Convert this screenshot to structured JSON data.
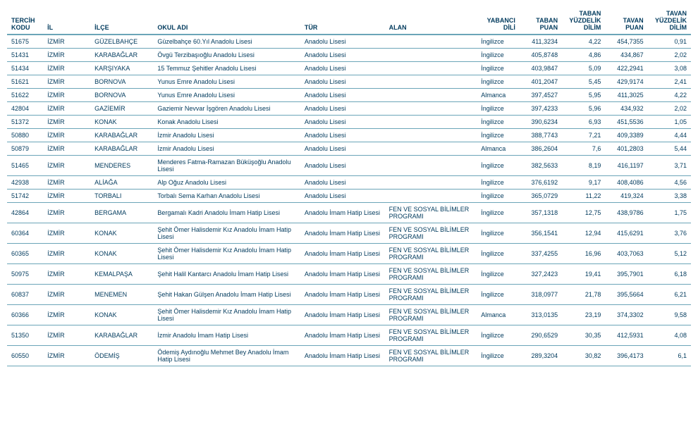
{
  "headers": {
    "tercih": "TERCİH KODU",
    "il": "İL",
    "ilce": "İLÇE",
    "okul": "OKUL ADI",
    "tur": "TÜR",
    "alan": "ALAN",
    "dil": "YABANCI DİLİ",
    "taban": "TABAN PUAN",
    "tabanyd": "TABAN YÜZDELİK DİLİM",
    "tavan": "TAVAN PUAN",
    "tavanyd": "TAVAN YÜZDELİK DİLİM"
  },
  "rows": [
    {
      "tercih": "51675",
      "il": "İZMİR",
      "ilce": "GÜZELBAHÇE",
      "okul": "Güzelbahçe 60.Yıl Anadolu Lisesi",
      "tur": "Anadolu Lisesi",
      "alan": "",
      "dil": "İngilizce",
      "taban": "411,3234",
      "tabanyd": "4,22",
      "tavan": "454,7355",
      "tavanyd": "0,91"
    },
    {
      "tercih": "51431",
      "il": "İZMİR",
      "ilce": "KARABAĞLAR",
      "okul": "Övgü Terzibaşıoğlu Anadolu Lisesi",
      "tur": "Anadolu Lisesi",
      "alan": "",
      "dil": "İngilizce",
      "taban": "405,8748",
      "tabanyd": "4,86",
      "tavan": "434,867",
      "tavanyd": "2,02"
    },
    {
      "tercih": "51434",
      "il": "İZMİR",
      "ilce": "KARŞIYAKA",
      "okul": "15 Temmuz Şehitler Anadolu Lisesi",
      "tur": "Anadolu Lisesi",
      "alan": "",
      "dil": "İngilizce",
      "taban": "403,9847",
      "tabanyd": "5,09",
      "tavan": "422,2941",
      "tavanyd": "3,08"
    },
    {
      "tercih": "51621",
      "il": "İZMİR",
      "ilce": "BORNOVA",
      "okul": "Yunus Emre Anadolu Lisesi",
      "tur": "Anadolu Lisesi",
      "alan": "",
      "dil": "İngilizce",
      "taban": "401,2047",
      "tabanyd": "5,45",
      "tavan": "429,9174",
      "tavanyd": "2,41"
    },
    {
      "tercih": "51622",
      "il": "İZMİR",
      "ilce": "BORNOVA",
      "okul": "Yunus Emre Anadolu Lisesi",
      "tur": "Anadolu Lisesi",
      "alan": "",
      "dil": "Almanca",
      "taban": "397,4527",
      "tabanyd": "5,95",
      "tavan": "411,3025",
      "tavanyd": "4,22"
    },
    {
      "tercih": "42804",
      "il": "İZMİR",
      "ilce": "GAZİEMİR",
      "okul": "Gaziemir Nevvar İşgören Anadolu Lisesi",
      "tur": "Anadolu Lisesi",
      "alan": "",
      "dil": "İngilizce",
      "taban": "397,4233",
      "tabanyd": "5,96",
      "tavan": "434,932",
      "tavanyd": "2,02"
    },
    {
      "tercih": "51372",
      "il": "İZMİR",
      "ilce": "KONAK",
      "okul": "Konak Anadolu Lisesi",
      "tur": "Anadolu Lisesi",
      "alan": "",
      "dil": "İngilizce",
      "taban": "390,6234",
      "tabanyd": "6,93",
      "tavan": "451,5536",
      "tavanyd": "1,05"
    },
    {
      "tercih": "50880",
      "il": "İZMİR",
      "ilce": "KARABAĞLAR",
      "okul": "İzmir Anadolu Lisesi",
      "tur": "Anadolu Lisesi",
      "alan": "",
      "dil": "İngilizce",
      "taban": "388,7743",
      "tabanyd": "7,21",
      "tavan": "409,3389",
      "tavanyd": "4,44"
    },
    {
      "tercih": "50879",
      "il": "İZMİR",
      "ilce": "KARABAĞLAR",
      "okul": "İzmir Anadolu Lisesi",
      "tur": "Anadolu Lisesi",
      "alan": "",
      "dil": "Almanca",
      "taban": "386,2604",
      "tabanyd": "7,6",
      "tavan": "401,2803",
      "tavanyd": "5,44"
    },
    {
      "tercih": "51465",
      "il": "İZMİR",
      "ilce": "MENDERES",
      "okul": "Menderes Fatma-Ramazan Büküşoğlu Anadolu Lisesi",
      "tur": "Anadolu Lisesi",
      "alan": "",
      "dil": "İngilizce",
      "taban": "382,5633",
      "tabanyd": "8,19",
      "tavan": "416,1197",
      "tavanyd": "3,71"
    },
    {
      "tercih": "42938",
      "il": "İZMİR",
      "ilce": "ALİAĞA",
      "okul": "Alp Oğuz Anadolu Lisesi",
      "tur": "Anadolu Lisesi",
      "alan": "",
      "dil": "İngilizce",
      "taban": "376,6192",
      "tabanyd": "9,17",
      "tavan": "408,4086",
      "tavanyd": "4,56"
    },
    {
      "tercih": "51742",
      "il": "İZMİR",
      "ilce": "TORBALI",
      "okul": "Torbalı Sema Karhan Anadolu Lisesi",
      "tur": "Anadolu Lisesi",
      "alan": "",
      "dil": "İngilizce",
      "taban": "365,0729",
      "tabanyd": "11,22",
      "tavan": "419,324",
      "tavanyd": "3,38"
    },
    {
      "tercih": "42864",
      "il": "İZMİR",
      "ilce": "BERGAMA",
      "okul": "Bergamalı Kadri Anadolu İmam Hatip Lisesi",
      "tur": "Anadolu İmam Hatip Lisesi",
      "alan": "FEN VE SOSYAL BİLİMLER PROGRAMI",
      "dil": "İngilizce",
      "taban": "357,1318",
      "tabanyd": "12,75",
      "tavan": "438,9786",
      "tavanyd": "1,75"
    },
    {
      "tercih": "60364",
      "il": "İZMİR",
      "ilce": "KONAK",
      "okul": "Şehit Ömer Halisdemir Kız Anadolu İmam Hatip Lisesi",
      "tur": "Anadolu İmam Hatip Lisesi",
      "alan": "FEN VE SOSYAL BİLİMLER PROGRAMI",
      "dil": "İngilizce",
      "taban": "356,1541",
      "tabanyd": "12,94",
      "tavan": "415,6291",
      "tavanyd": "3,76"
    },
    {
      "tercih": "60365",
      "il": "İZMİR",
      "ilce": "KONAK",
      "okul": "Şehit Ömer Halisdemir Kız Anadolu İmam Hatip Lisesi",
      "tur": "Anadolu İmam Hatip Lisesi",
      "alan": "FEN VE SOSYAL BİLİMLER PROGRAMI",
      "dil": "İngilizce",
      "taban": "337,4255",
      "tabanyd": "16,96",
      "tavan": "403,7063",
      "tavanyd": "5,12"
    },
    {
      "tercih": "50975",
      "il": "İZMİR",
      "ilce": "KEMALPAŞA",
      "okul": "Şehit Halil Kantarcı Anadolu İmam Hatip Lisesi",
      "tur": "Anadolu İmam Hatip Lisesi",
      "alan": "FEN VE SOSYAL BİLİMLER PROGRAMI",
      "dil": "İngilizce",
      "taban": "327,2423",
      "tabanyd": "19,41",
      "tavan": "395,7901",
      "tavanyd": "6,18"
    },
    {
      "tercih": "60837",
      "il": "İZMİR",
      "ilce": "MENEMEN",
      "okul": "Şehit Hakan Gülşen Anadolu İmam Hatip Lisesi",
      "tur": "Anadolu İmam Hatip Lisesi",
      "alan": "FEN VE SOSYAL BİLİMLER PROGRAMI",
      "dil": "İngilizce",
      "taban": "318,0977",
      "tabanyd": "21,78",
      "tavan": "395,5664",
      "tavanyd": "6,21"
    },
    {
      "tercih": "60366",
      "il": "İZMİR",
      "ilce": "KONAK",
      "okul": "Şehit Ömer Halisdemir Kız Anadolu İmam Hatip Lisesi",
      "tur": "Anadolu İmam Hatip Lisesi",
      "alan": "FEN VE SOSYAL BİLİMLER PROGRAMI",
      "dil": "Almanca",
      "taban": "313,0135",
      "tabanyd": "23,19",
      "tavan": "374,3302",
      "tavanyd": "9,58"
    },
    {
      "tercih": "51350",
      "il": "İZMİR",
      "ilce": "KARABAĞLAR",
      "okul": "İzmir Anadolu İmam Hatip Lisesi",
      "tur": "Anadolu İmam Hatip Lisesi",
      "alan": "FEN VE SOSYAL BİLİMLER PROGRAMI",
      "dil": "İngilizce",
      "taban": "290,6529",
      "tabanyd": "30,35",
      "tavan": "412,5931",
      "tavanyd": "4,08"
    },
    {
      "tercih": "60550",
      "il": "İZMİR",
      "ilce": "ÖDEMİŞ",
      "okul": "Ödemiş Aydınoğlu Mehmet Bey Anadolu İmam Hatip Lisesi",
      "tur": "Anadolu İmam Hatip Lisesi",
      "alan": "FEN VE SOSYAL BİLİMLER PROGRAMI",
      "dil": "İngilizce",
      "taban": "289,3204",
      "tabanyd": "30,82",
      "tavan": "396,4173",
      "tavanyd": "6,1"
    }
  ]
}
